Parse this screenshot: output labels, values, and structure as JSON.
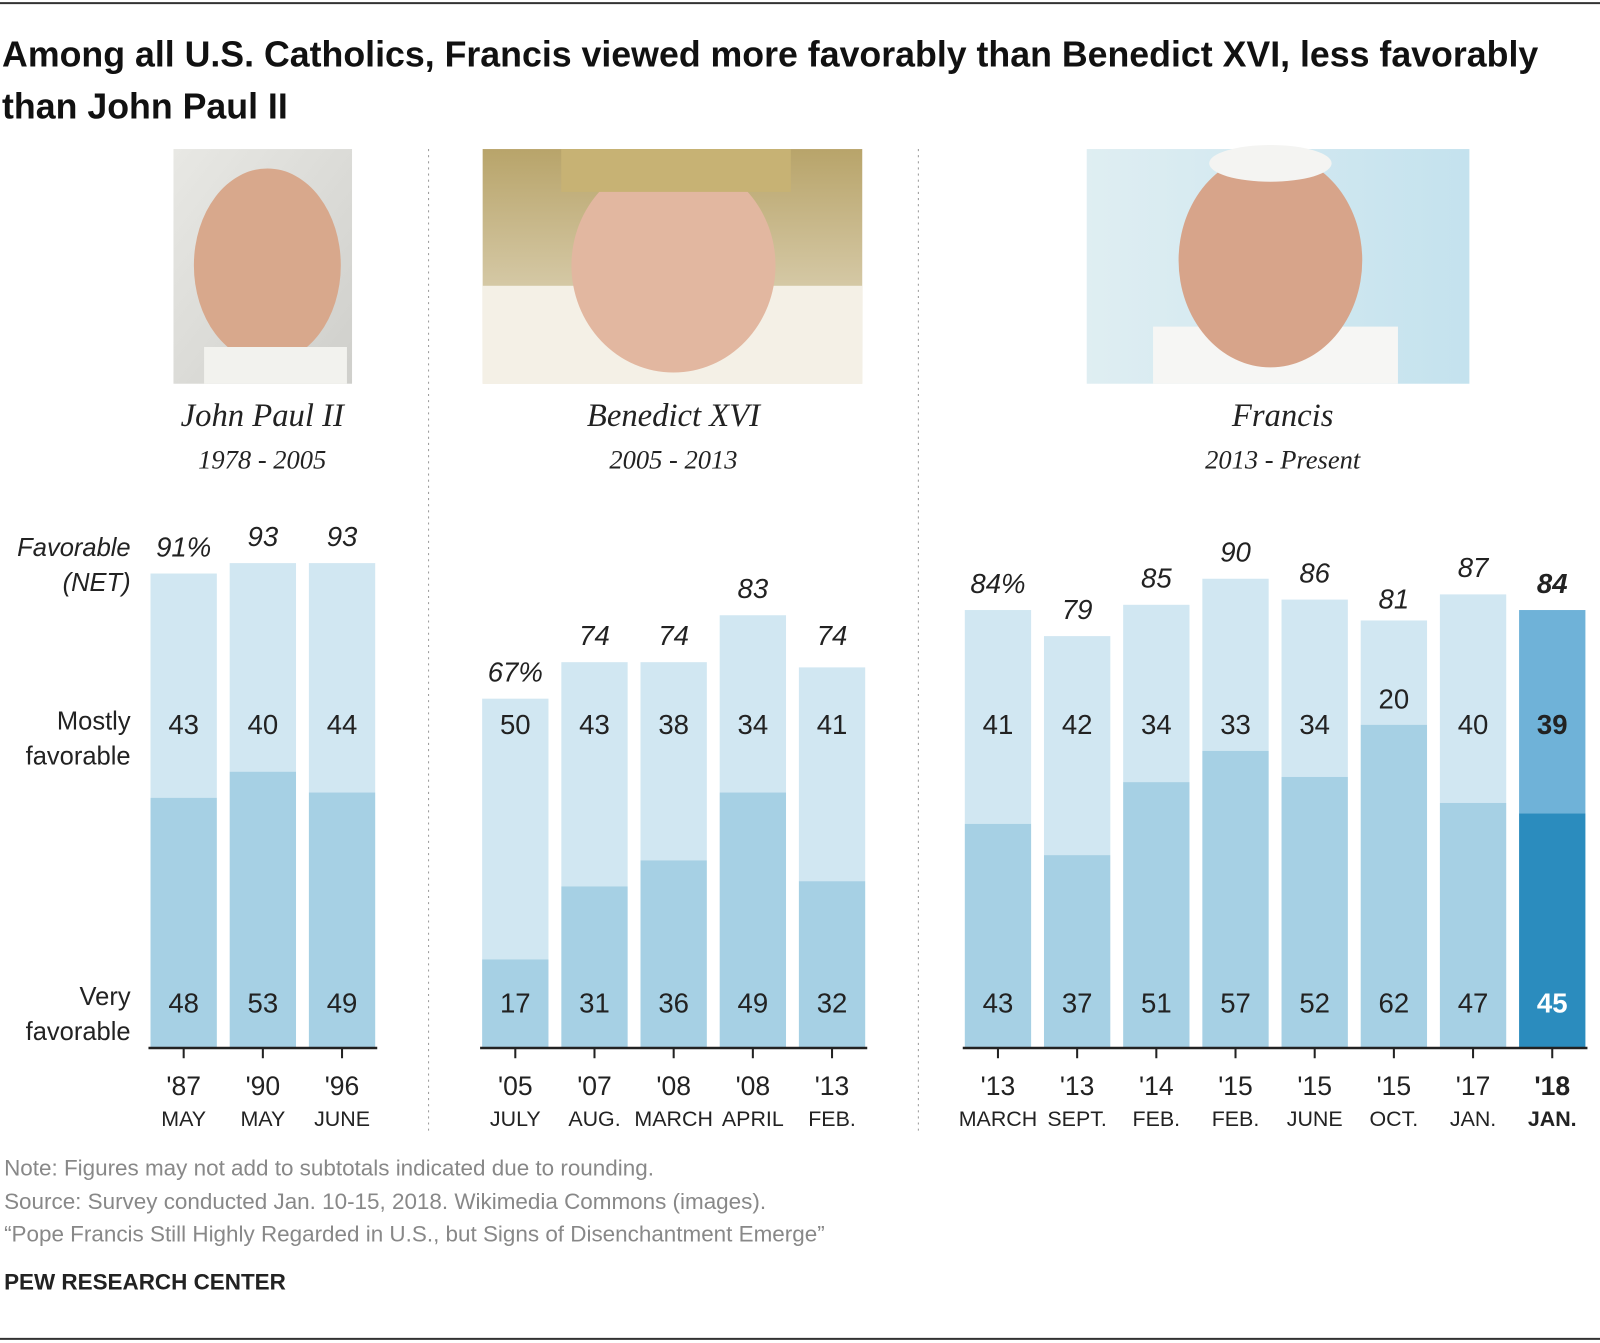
{
  "chart_data": {
    "type": "stacked_bar",
    "title": "Among all U.S. Catholics, Francis viewed more favorably than Benedict XVI, less favorably than John Paul II",
    "groups": [
      {
        "name": "John Paul II",
        "years": "1978 - 2005",
        "categories": [
          "'87",
          "'90",
          "'96"
        ],
        "months": [
          "MAY",
          "MAY",
          "JUNE"
        ]
      },
      {
        "name": "Benedict XVI",
        "years": "2005 - 2013",
        "categories": [
          "'05",
          "'07",
          "'08",
          "'08",
          "'13"
        ],
        "months": [
          "JULY",
          "AUG.",
          "MARCH",
          "APRIL",
          "FEB."
        ]
      },
      {
        "name": "Francis",
        "years": "2013 - Present",
        "categories": [
          "'13",
          "'13",
          "'14",
          "'15",
          "'15",
          "'15",
          "'17",
          "'18"
        ],
        "months": [
          "MARCH",
          "SEPT.",
          "FEB.",
          "FEB.",
          "JUNE",
          "OCT.",
          "JAN.",
          "JAN."
        ]
      }
    ],
    "series": [
      {
        "name": "Very favorable",
        "color": "#a6d0e4",
        "highlight_color": "#2b8cbe",
        "values": [
          48,
          53,
          49,
          17,
          31,
          36,
          49,
          32,
          43,
          37,
          51,
          57,
          52,
          62,
          47,
          45
        ]
      },
      {
        "name": "Mostly favorable",
        "color": "#d1e7f2",
        "highlight_color": "#6fb2d8",
        "values": [
          43,
          40,
          44,
          50,
          43,
          38,
          34,
          41,
          41,
          42,
          34,
          33,
          34,
          20,
          40,
          39
        ]
      },
      {
        "name": "Favorable (NET)",
        "values": [
          91,
          93,
          93,
          67,
          74,
          74,
          83,
          74,
          84,
          79,
          85,
          90,
          86,
          81,
          87,
          84
        ],
        "value_labels": [
          "91%",
          "93",
          "93",
          "67%",
          "74",
          "74",
          "83",
          "74",
          "84%",
          "79",
          "85",
          "90",
          "86",
          "81",
          "87",
          "84"
        ]
      }
    ],
    "highlight": 15,
    "note": "Note: Figures may not add to subtotals indicated due to rounding.",
    "source": "Source: Survey conducted Jan. 10-15, 2018. Wikimedia Commons (images).",
    "report": "“Pope Francis Still Highly Regarded in U.S., but Signs of Disenchantment Emerge”",
    "credit": "PEW RESEARCH CENTER"
  }
}
